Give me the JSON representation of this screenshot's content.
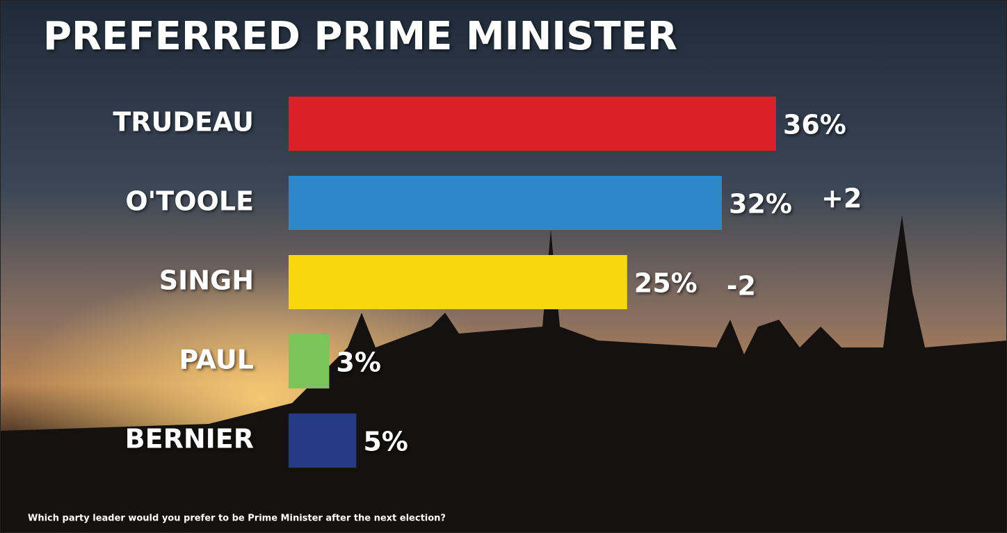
{
  "chart_data": {
    "type": "bar",
    "orientation": "horizontal",
    "title": "PREFERRED PRIME MINISTER",
    "categories": [
      "TRUDEAU",
      "O'TOOLE",
      "SINGH",
      "PAUL",
      "BERNIER"
    ],
    "values": [
      36,
      32,
      25,
      3,
      5
    ],
    "value_labels": [
      "36%",
      "32%",
      "25%",
      "3%",
      "5%"
    ],
    "changes": [
      null,
      "+2",
      "-2",
      null,
      null
    ],
    "colors": [
      "#d92127",
      "#2d88c9",
      "#f7d70f",
      "#7cc35a",
      "#253a84"
    ],
    "footnote": "Which party leader would you prefer to be Prime Minister after the next election?"
  }
}
